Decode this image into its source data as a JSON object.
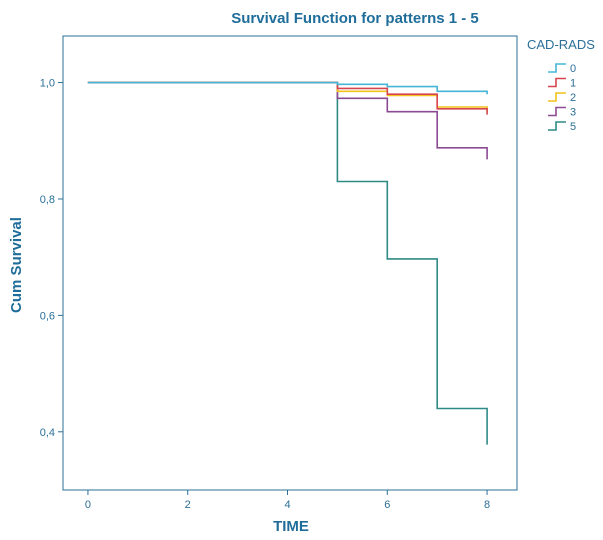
{
  "chart_data": {
    "type": "line",
    "step": true,
    "title": "Survival Function for patterns 1 - 5",
    "xlabel": "TIME",
    "ylabel": "Cum Survival",
    "xlim": [
      -0.5,
      8.6
    ],
    "ylim": [
      0.3,
      1.08
    ],
    "xticks": [
      0,
      2,
      4,
      6,
      8
    ],
    "xtick_labels": [
      "0",
      "2",
      "4",
      "6",
      "8"
    ],
    "yticks": [
      0.4,
      0.6,
      0.8,
      1.0
    ],
    "ytick_labels": [
      "0,4",
      "0,6",
      "0,8",
      "1,0"
    ],
    "grid": false,
    "legend": {
      "title": "CAD-RADS",
      "placement": "top-right-outside"
    },
    "series": [
      {
        "name": "0",
        "color": "#45b5d8",
        "x": [
          0,
          5,
          6,
          7,
          8
        ],
        "y": [
          1.0,
          0.997,
          0.993,
          0.985,
          0.98
        ]
      },
      {
        "name": "1",
        "color": "#d64550",
        "x": [
          0,
          5,
          6,
          7,
          8
        ],
        "y": [
          1.0,
          0.99,
          0.98,
          0.955,
          0.945
        ]
      },
      {
        "name": "2",
        "color": "#f0c11a",
        "x": [
          0,
          5,
          6,
          7,
          8
        ],
        "y": [
          1.0,
          0.985,
          0.978,
          0.958,
          0.95
        ]
      },
      {
        "name": "3",
        "color": "#8c4a93",
        "x": [
          0,
          5,
          6,
          7,
          8
        ],
        "y": [
          1.0,
          0.973,
          0.95,
          0.888,
          0.868
        ]
      },
      {
        "name": "5",
        "color": "#2f8a86",
        "x": [
          0,
          5,
          6,
          7,
          8
        ],
        "y": [
          1.0,
          0.83,
          0.697,
          0.44,
          0.378
        ]
      }
    ]
  }
}
